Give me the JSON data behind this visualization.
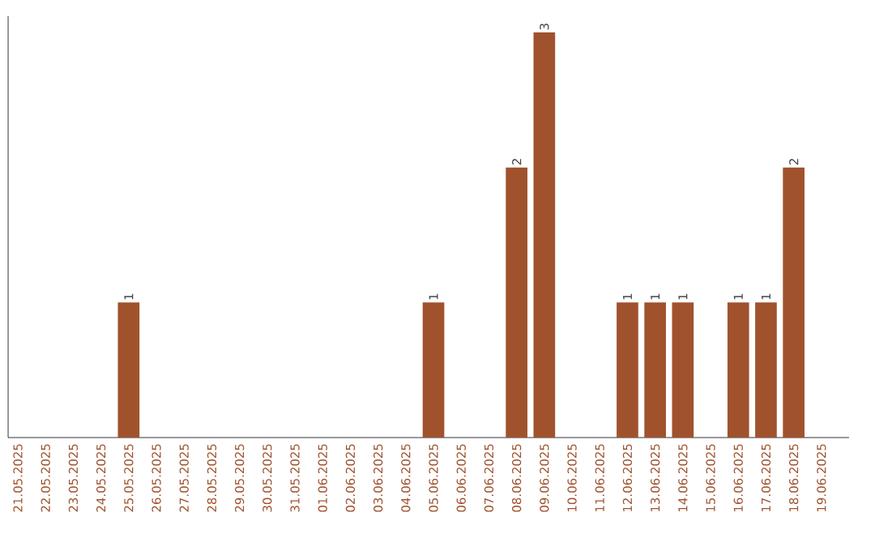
{
  "chart_data": {
    "type": "bar",
    "color": "#a0522d",
    "categories": [
      "21.05.2025",
      "22.05.2025",
      "23.05.2025",
      "24.05.2025",
      "25.05.2025",
      "26.05.2025",
      "27.05.2025",
      "28.05.2025",
      "29.05.2025",
      "30.05.2025",
      "31.05.2025",
      "01.06.2025",
      "02.06.2025",
      "03.06.2025",
      "04.06.2025",
      "05.06.2025",
      "06.06.2025",
      "07.06.2025",
      "08.06.2025",
      "09.06.2025",
      "10.06.2025",
      "11.06.2025",
      "12.06.2025",
      "13.06.2025",
      "14.06.2025",
      "15.06.2025",
      "16.06.2025",
      "17.06.2025",
      "18.06.2025",
      "19.06.2025"
    ],
    "values": [
      0,
      0,
      0,
      0,
      1,
      0,
      0,
      0,
      0,
      0,
      0,
      0,
      0,
      0,
      0,
      1,
      0,
      0,
      2,
      3,
      0,
      0,
      1,
      1,
      1,
      0,
      1,
      1,
      2,
      0
    ],
    "value_labels": [
      null,
      null,
      null,
      null,
      "1",
      null,
      null,
      null,
      null,
      null,
      null,
      null,
      null,
      null,
      null,
      "1",
      null,
      null,
      "2",
      "3",
      null,
      null,
      "1",
      "1",
      "1",
      null,
      "1",
      "1",
      "2",
      null
    ],
    "tick_labels": "x"
  }
}
